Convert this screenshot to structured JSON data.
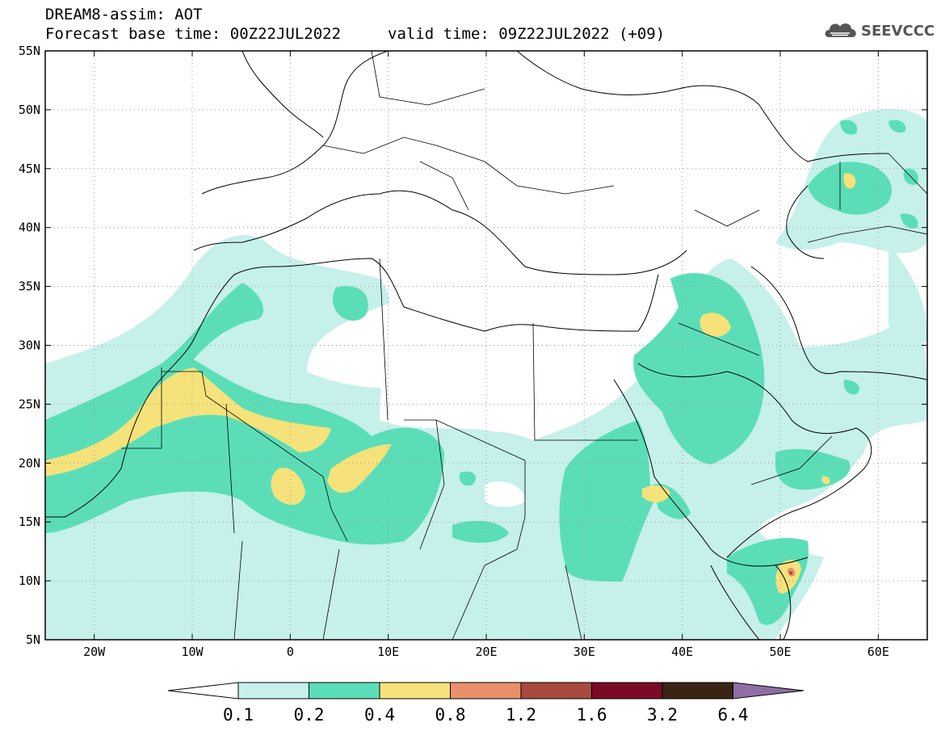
{
  "header": {
    "title": "DREAM8-assim: AOT",
    "base_time": "Forecast base time: 00Z22JUL2022",
    "valid_time": "valid time: 09Z22JUL2022 (+09)"
  },
  "logo": {
    "text": "SEEVCCC",
    "icon": "cloud-icon"
  },
  "map": {
    "lat_ticks": [
      {
        "value": 55,
        "label": "55N"
      },
      {
        "value": 50,
        "label": "50N"
      },
      {
        "value": 45,
        "label": "45N"
      },
      {
        "value": 40,
        "label": "40N"
      },
      {
        "value": 35,
        "label": "35N"
      },
      {
        "value": 30,
        "label": "30N"
      },
      {
        "value": 25,
        "label": "25N"
      },
      {
        "value": 20,
        "label": "20N"
      },
      {
        "value": 15,
        "label": "15N"
      },
      {
        "value": 10,
        "label": "10N"
      },
      {
        "value": 5,
        "label": "5N"
      }
    ],
    "lon_ticks": [
      {
        "value": -20,
        "label": "20W"
      },
      {
        "value": -10,
        "label": "10W"
      },
      {
        "value": 0,
        "label": "0"
      },
      {
        "value": 10,
        "label": "10E"
      },
      {
        "value": 20,
        "label": "20E"
      },
      {
        "value": 30,
        "label": "30E"
      },
      {
        "value": 40,
        "label": "40E"
      },
      {
        "value": 50,
        "label": "50E"
      },
      {
        "value": 60,
        "label": "60E"
      }
    ],
    "lon_range": [
      -25,
      65
    ],
    "lat_range": [
      5,
      55
    ],
    "grid": "dotted"
  },
  "colorbar": {
    "colors": [
      "#c6f0ea",
      "#5bdeb7",
      "#f5e27b",
      "#e9906b",
      "#a84a3e",
      "#7a0a26",
      "#3b2414",
      "#8e6ea4"
    ],
    "labels": [
      "0.1",
      "0.2",
      "0.4",
      "0.8",
      "1.2",
      "1.6",
      "3.2",
      "6.4"
    ]
  }
}
